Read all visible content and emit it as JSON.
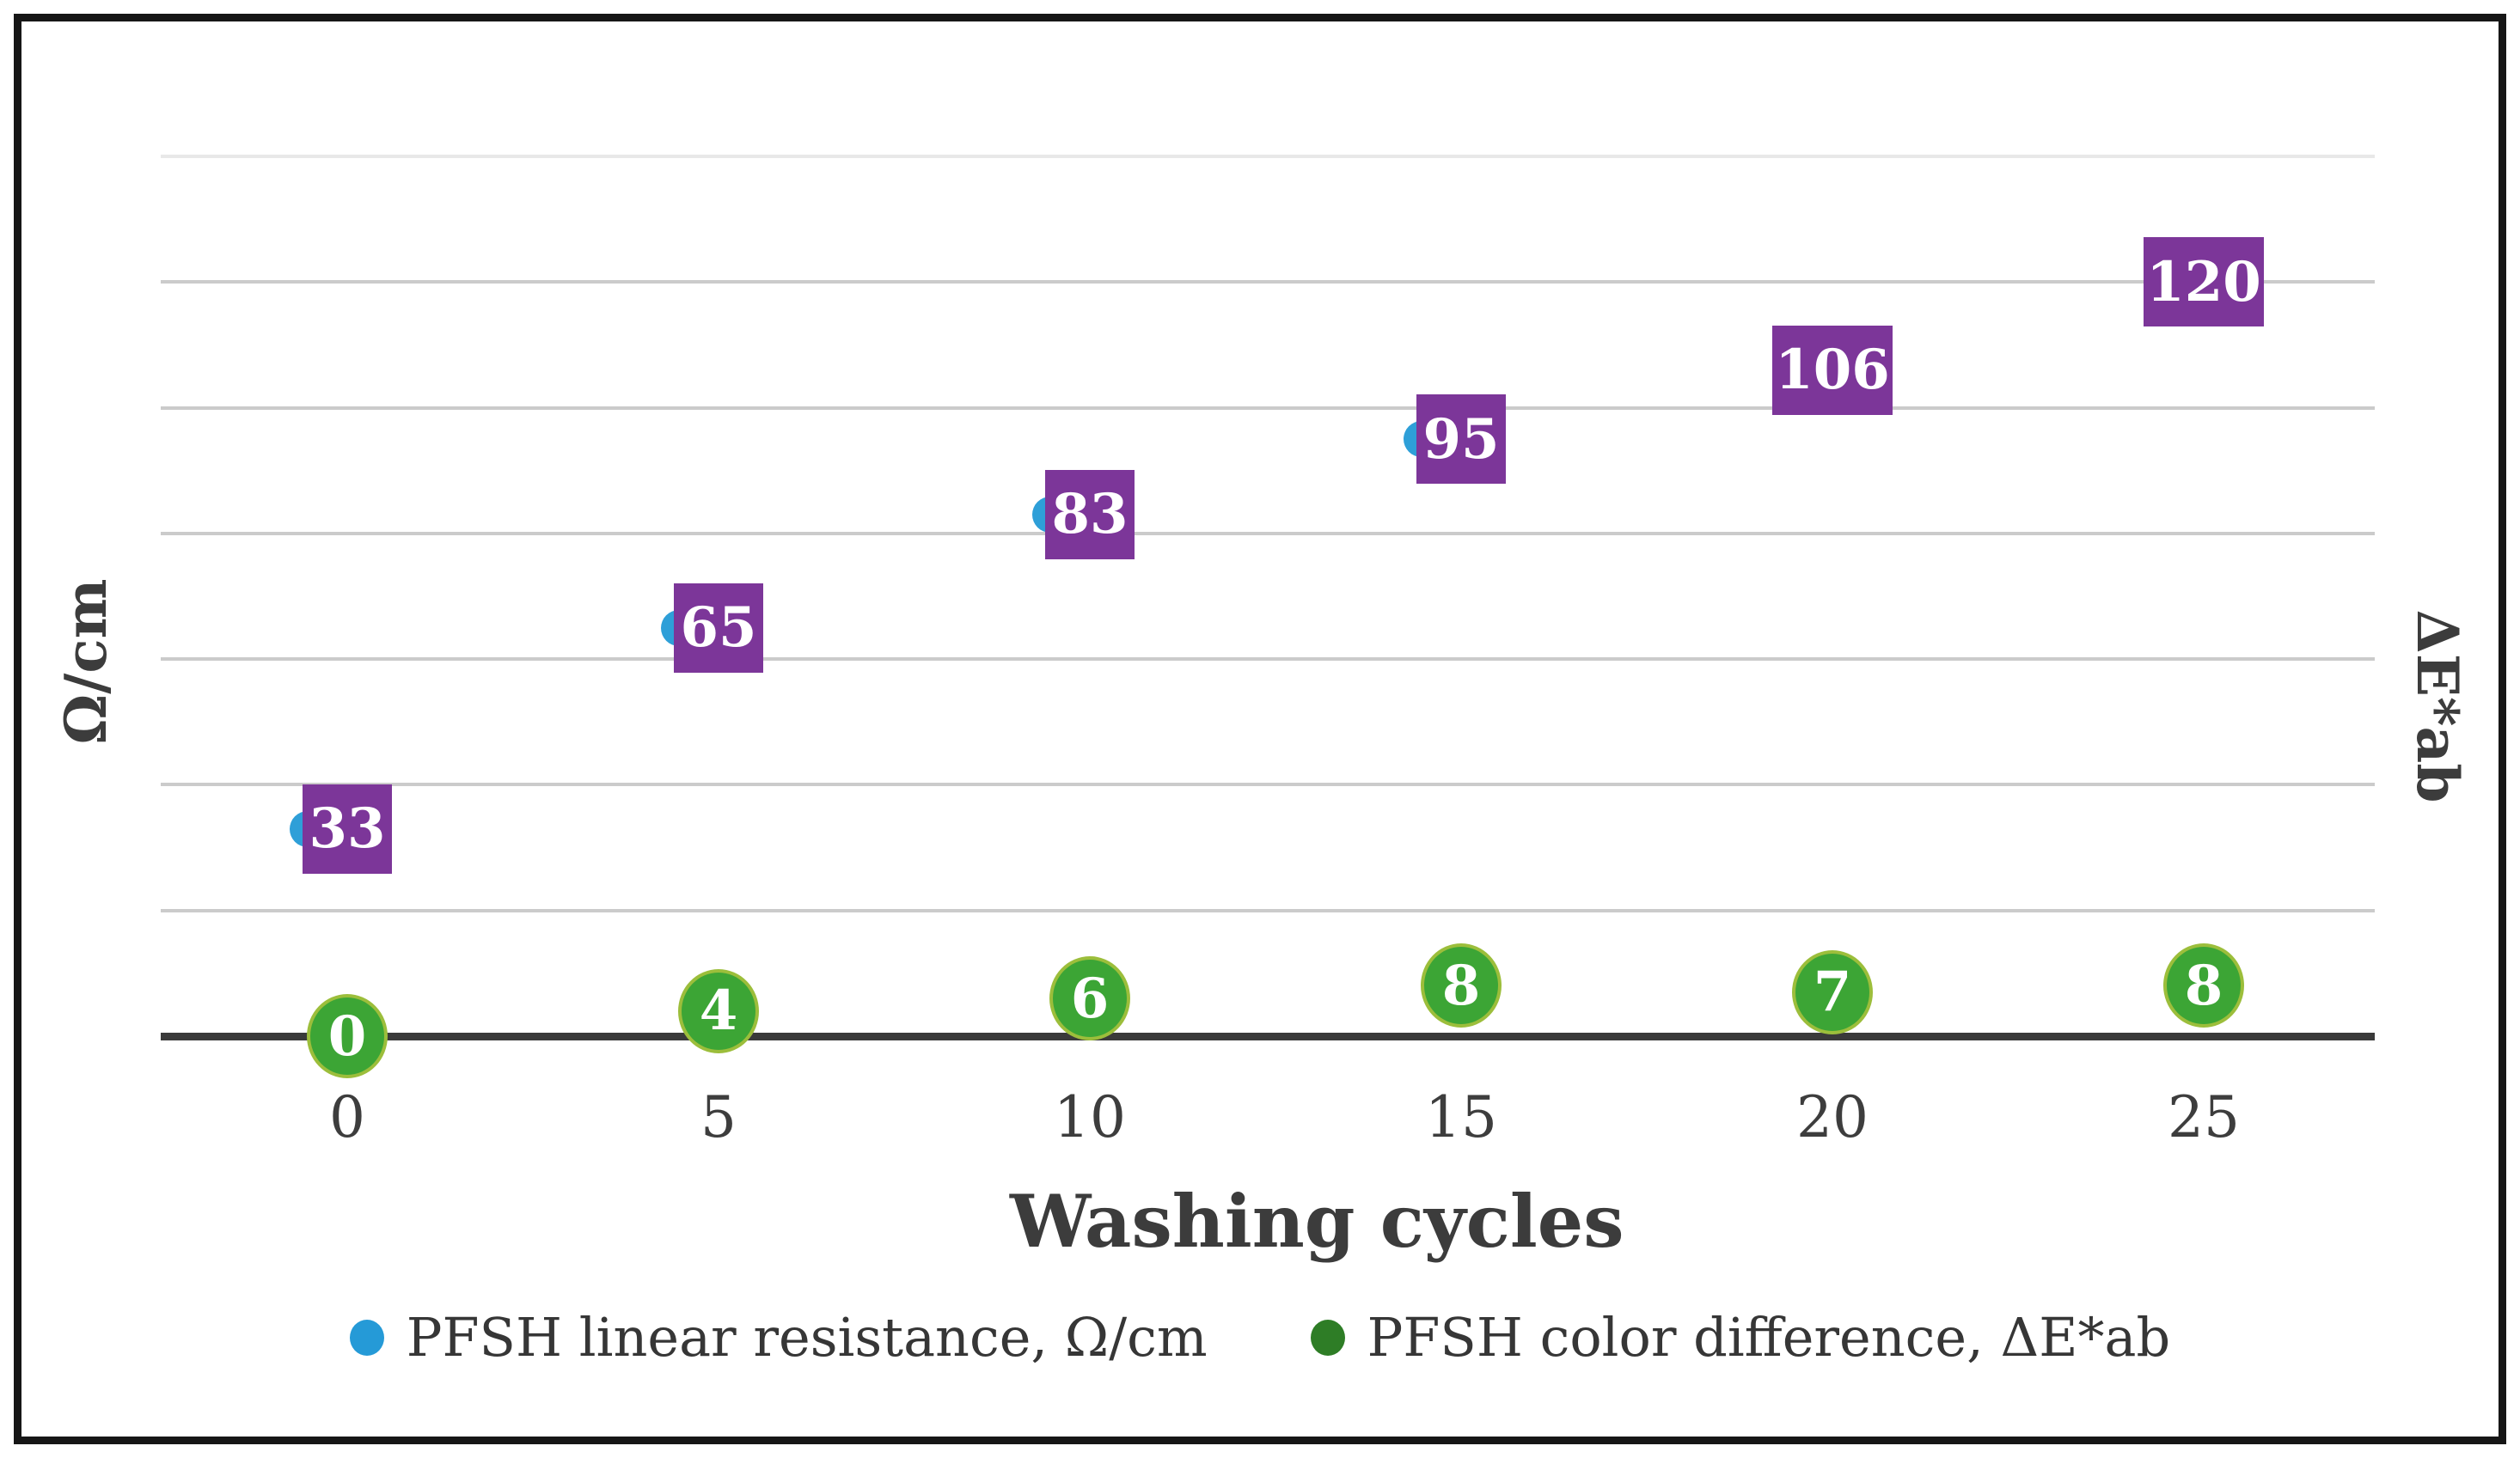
{
  "figure": {
    "x_axis_title": "Washing cycles",
    "y_left_title": "Ω/cm",
    "y_right_title": "ΔE*ab"
  },
  "chart_data": {
    "type": "scatter",
    "title": "",
    "xlabel": "Washing cycles",
    "ylabel_left": "Ω/cm",
    "ylabel_right": "ΔE*ab",
    "categories": [
      0,
      5,
      10,
      15,
      20,
      25
    ],
    "x_tick_labels": [
      "0",
      "5",
      "10",
      "15",
      "20",
      "25"
    ],
    "series": [
      {
        "name": "PFSH linear resistance, Ω/cm",
        "axis": "left",
        "values": [
          33,
          65,
          83,
          95,
          106,
          120
        ],
        "data_labels": [
          "33",
          "65",
          "83",
          "95",
          "106",
          "120"
        ],
        "marker": "circle",
        "marker_color": "#2e9fd8",
        "label_bg_color": "#7c3699",
        "label_text_color": "#ffffff"
      },
      {
        "name": "PFSH color difference, ΔE*ab",
        "axis": "right",
        "values": [
          0,
          4,
          6,
          8,
          7,
          8
        ],
        "data_labels": [
          "0",
          "4",
          "6",
          "8",
          "7",
          "8"
        ],
        "marker": "circle",
        "marker_color": "#3ca535",
        "marker_border_color": "#9cbe3b",
        "label_text_color": "#ffffff"
      }
    ],
    "left_axis": {
      "min": 0,
      "max": 140,
      "gridline_step": 20,
      "tick_labels_visible": false
    },
    "grid": true,
    "gridline_color": "#cbcbcb",
    "axis_line_color": "#3a3a3a",
    "legend_position": "bottom",
    "legend_colors": [
      "#259ad7",
      "#2e7d26"
    ]
  }
}
